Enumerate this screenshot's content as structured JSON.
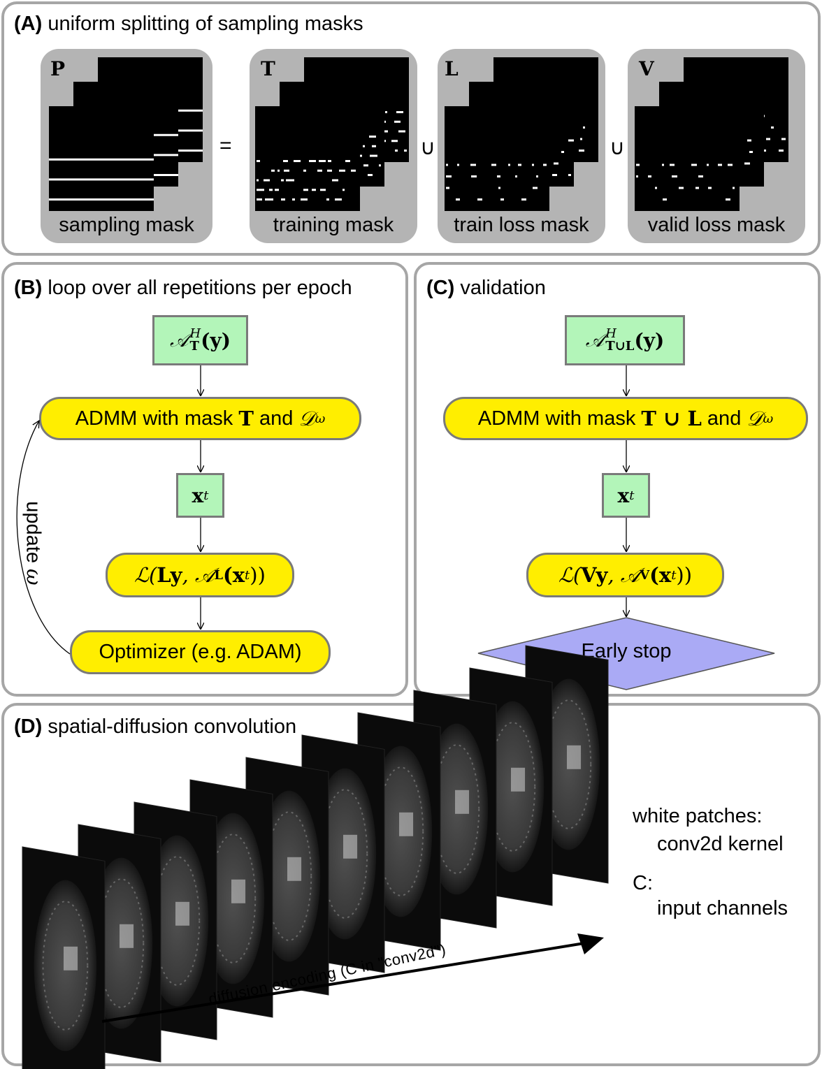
{
  "panelA": {
    "label": "(A)",
    "title": "uniform splitting of sampling masks",
    "masks": [
      {
        "letter": "P",
        "caption": "sampling mask"
      },
      {
        "letter": "T",
        "caption": "training mask"
      },
      {
        "letter": "L",
        "caption": "train loss mask"
      },
      {
        "letter": "V",
        "caption": "valid loss mask"
      }
    ],
    "operators": [
      "=",
      "∪",
      "∪"
    ]
  },
  "panelB": {
    "label": "(B)",
    "title": "loop over all repetitions per epoch",
    "input": "𝒜ᴴ_T(y)",
    "input_main": "𝒜",
    "input_sup": "H",
    "input_sub": "T",
    "input_tail": "(y)",
    "admm_prefix": "ADMM with mask ",
    "admm_mask": "T",
    "admm_and": " and ",
    "admm_reg": "𝒟",
    "admm_reg_sub": "ω",
    "xt_main": "x",
    "xt_sub": "t",
    "loss": "ℒ(Ly, 𝒜_L(x_t))",
    "loss_a": "ℒ(",
    "loss_b": "Ly",
    "loss_c": ", 𝒜",
    "loss_sub1": "L",
    "loss_d": "(x",
    "loss_sub2": "t",
    "loss_e": "))",
    "optimizer": "Optimizer (e.g. ADAM)",
    "update_label": "update",
    "update_symbol": "ω"
  },
  "panelC": {
    "label": "(C)",
    "title": "validation",
    "input_main": "𝒜",
    "input_sup": "H",
    "input_sub": "T∪L",
    "input_tail": "(y)",
    "admm_prefix": "ADMM with mask ",
    "admm_mask": "T ∪ L",
    "admm_and": " and ",
    "admm_reg": "𝒟",
    "admm_reg_sub": "ω",
    "xt_main": "x",
    "xt_sub": "t",
    "loss_a": "ℒ(",
    "loss_b": "Vy",
    "loss_c": ", 𝒜",
    "loss_sub1": "V",
    "loss_d": "(x",
    "loss_sub2": "t",
    "loss_e": "))",
    "early_stop": "Early stop"
  },
  "panelD": {
    "label": "(D)",
    "title": "spatial-diffusion convolution",
    "axis_label": "diffusion encoding (C in \"conv2d\")",
    "legend_line1": "white patches:",
    "legend_line2": "conv2d kernel",
    "legend_line3": "C:",
    "legend_line4": "input channels",
    "slice_count": 10
  },
  "colors": {
    "panel_border": "#a6a6a6",
    "mask_bg": "#b4b4b4",
    "green_box": "#b3f5b9",
    "yellow_box": "#ffee00",
    "diamond": "#aaaaf5"
  }
}
